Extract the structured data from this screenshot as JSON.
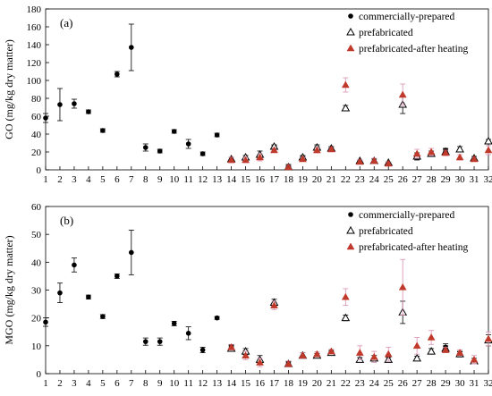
{
  "chart_data": [
    {
      "type": "scatter",
      "panel_label": "(a)",
      "ylabel": "GO (mg/kg dry matter)",
      "xlabel": "",
      "xlim": [
        1,
        32
      ],
      "ylim": [
        0,
        180
      ],
      "ytick_step": 20,
      "grid": false,
      "legend_position": "top-right",
      "x": [
        1,
        2,
        3,
        4,
        5,
        6,
        7,
        8,
        9,
        10,
        11,
        12,
        13,
        14,
        15,
        16,
        17,
        18,
        19,
        20,
        21,
        22,
        23,
        24,
        25,
        26,
        27,
        28,
        29,
        30,
        31,
        32
      ],
      "series": [
        {
          "name": "commercially-prepared",
          "marker": "dot",
          "color": "#000000",
          "points": [
            {
              "x": 1,
              "y": 58,
              "err": 5
            },
            {
              "x": 2,
              "y": 73,
              "err": 18
            },
            {
              "x": 3,
              "y": 74,
              "err": 5
            },
            {
              "x": 4,
              "y": 65,
              "err": 2
            },
            {
              "x": 5,
              "y": 44,
              "err": 2
            },
            {
              "x": 6,
              "y": 107,
              "err": 3
            },
            {
              "x": 7,
              "y": 137,
              "err": 26
            },
            {
              "x": 8,
              "y": 25,
              "err": 4
            },
            {
              "x": 9,
              "y": 21,
              "err": 2
            },
            {
              "x": 10,
              "y": 43,
              "err": 2
            },
            {
              "x": 11,
              "y": 29,
              "err": 5
            },
            {
              "x": 12,
              "y": 18,
              "err": 2
            },
            {
              "x": 13,
              "y": 39,
              "err": 2
            },
            {
              "x": 17,
              "y": 25,
              "err": 2
            },
            {
              "x": 18,
              "y": 4,
              "err": 2
            },
            {
              "x": 19,
              "y": 13,
              "err": 2
            },
            {
              "x": 20,
              "y": 23,
              "err": 3
            },
            {
              "x": 21,
              "y": 23,
              "err": 2
            },
            {
              "x": 29,
              "y": 22,
              "err": 2
            }
          ]
        },
        {
          "name": "prefabricated",
          "marker": "open-triangle",
          "color": "#000000",
          "points": [
            {
              "x": 14,
              "y": 12,
              "err": 2
            },
            {
              "x": 15,
              "y": 14,
              "err": 2
            },
            {
              "x": 16,
              "y": 17,
              "err": 4
            },
            {
              "x": 17,
              "y": 26,
              "err": 2
            },
            {
              "x": 18,
              "y": 3,
              "err": 1
            },
            {
              "x": 19,
              "y": 14,
              "err": 2
            },
            {
              "x": 20,
              "y": 25,
              "err": 3
            },
            {
              "x": 21,
              "y": 24,
              "err": 2
            },
            {
              "x": 22,
              "y": 69,
              "err": 3
            },
            {
              "x": 23,
              "y": 10,
              "err": 1
            },
            {
              "x": 24,
              "y": 10,
              "err": 2
            },
            {
              "x": 25,
              "y": 8,
              "err": 1
            },
            {
              "x": 26,
              "y": 73,
              "err": 10
            },
            {
              "x": 27,
              "y": 15,
              "err": 4
            },
            {
              "x": 28,
              "y": 18,
              "err": 3
            },
            {
              "x": 29,
              "y": 20,
              "err": 3
            },
            {
              "x": 30,
              "y": 23,
              "err": 3
            },
            {
              "x": 31,
              "y": 13,
              "err": 2
            },
            {
              "x": 32,
              "y": 32,
              "err": 2
            }
          ]
        },
        {
          "name": "prefabricated-after heating",
          "marker": "filled-triangle",
          "color": "#c0392b",
          "errcolor": "#d98fb0",
          "points": [
            {
              "x": 14,
              "y": 11,
              "err": 3
            },
            {
              "x": 15,
              "y": 11,
              "err": 3
            },
            {
              "x": 16,
              "y": 14,
              "err": 4
            },
            {
              "x": 17,
              "y": 22,
              "err": 2
            },
            {
              "x": 18,
              "y": 3,
              "err": 2
            },
            {
              "x": 19,
              "y": 12,
              "err": 2
            },
            {
              "x": 20,
              "y": 22,
              "err": 3
            },
            {
              "x": 21,
              "y": 23,
              "err": 2
            },
            {
              "x": 22,
              "y": 95,
              "err": 8
            },
            {
              "x": 23,
              "y": 9,
              "err": 2
            },
            {
              "x": 24,
              "y": 10,
              "err": 3
            },
            {
              "x": 25,
              "y": 7,
              "err": 2
            },
            {
              "x": 26,
              "y": 84,
              "err": 12
            },
            {
              "x": 27,
              "y": 18,
              "err": 5
            },
            {
              "x": 28,
              "y": 20,
              "err": 4
            },
            {
              "x": 29,
              "y": 19,
              "err": 3
            },
            {
              "x": 30,
              "y": 14,
              "err": 3
            },
            {
              "x": 31,
              "y": 12,
              "err": 2
            },
            {
              "x": 32,
              "y": 22,
              "err": 5
            }
          ]
        }
      ]
    },
    {
      "type": "scatter",
      "panel_label": "(b)",
      "ylabel": "MGO (mg/kg dry matter)",
      "xlabel": "",
      "xlim": [
        1,
        32
      ],
      "ylim": [
        0,
        60
      ],
      "ytick_step": 10,
      "grid": false,
      "legend_position": "top-right",
      "x": [
        1,
        2,
        3,
        4,
        5,
        6,
        7,
        8,
        9,
        10,
        11,
        12,
        13,
        14,
        15,
        16,
        17,
        18,
        19,
        20,
        21,
        22,
        23,
        24,
        25,
        26,
        27,
        28,
        29,
        30,
        31,
        32
      ],
      "series": [
        {
          "name": "commercially-prepared",
          "marker": "dot",
          "color": "#000000",
          "points": [
            {
              "x": 1,
              "y": 18.5,
              "err": 1.5
            },
            {
              "x": 2,
              "y": 29,
              "err": 3.5
            },
            {
              "x": 3,
              "y": 39,
              "err": 2.5
            },
            {
              "x": 4,
              "y": 27.5,
              "err": 0.7
            },
            {
              "x": 5,
              "y": 20.5,
              "err": 0.7
            },
            {
              "x": 6,
              "y": 35,
              "err": 0.8
            },
            {
              "x": 7,
              "y": 43.5,
              "err": 8
            },
            {
              "x": 8,
              "y": 11.5,
              "err": 1.3
            },
            {
              "x": 9,
              "y": 11.5,
              "err": 1.3
            },
            {
              "x": 10,
              "y": 18,
              "err": 0.8
            },
            {
              "x": 11,
              "y": 14.5,
              "err": 2.3
            },
            {
              "x": 12,
              "y": 8.5,
              "err": 1
            },
            {
              "x": 13,
              "y": 20,
              "err": 0.5
            },
            {
              "x": 14,
              "y": 9.5,
              "err": 0.8
            },
            {
              "x": 15,
              "y": 7.5,
              "err": 0.7
            },
            {
              "x": 18,
              "y": 3.5,
              "err": 0.7
            },
            {
              "x": 21,
              "y": 8,
              "err": 0.6
            },
            {
              "x": 29,
              "y": 9.5,
              "err": 1.2
            },
            {
              "x": 30,
              "y": 7,
              "err": 0.8
            }
          ]
        },
        {
          "name": "prefabricated",
          "marker": "open-triangle",
          "color": "#000000",
          "points": [
            {
              "x": 14,
              "y": 9,
              "err": 1
            },
            {
              "x": 15,
              "y": 8,
              "err": 1
            },
            {
              "x": 16,
              "y": 5,
              "err": 1.5
            },
            {
              "x": 17,
              "y": 25.5,
              "err": 1.2
            },
            {
              "x": 18,
              "y": 3.5,
              "err": 1
            },
            {
              "x": 19,
              "y": 6.5,
              "err": 1
            },
            {
              "x": 20,
              "y": 6.5,
              "err": 0.8
            },
            {
              "x": 21,
              "y": 7.5,
              "err": 0.5
            },
            {
              "x": 22,
              "y": 20,
              "err": 1
            },
            {
              "x": 23,
              "y": 5,
              "err": 0.8
            },
            {
              "x": 24,
              "y": 5.5,
              "err": 1
            },
            {
              "x": 25,
              "y": 5,
              "err": 0.8
            },
            {
              "x": 26,
              "y": 22,
              "err": 4
            },
            {
              "x": 27,
              "y": 5.5,
              "err": 0.8
            },
            {
              "x": 28,
              "y": 8,
              "err": 1
            },
            {
              "x": 29,
              "y": 9,
              "err": 1
            },
            {
              "x": 30,
              "y": 7,
              "err": 1
            },
            {
              "x": 31,
              "y": 4.5,
              "err": 1
            },
            {
              "x": 32,
              "y": 12,
              "err": 2
            }
          ]
        },
        {
          "name": "prefabricated-after heating",
          "marker": "filled-triangle",
          "color": "#c0392b",
          "errcolor": "#d98fb0",
          "points": [
            {
              "x": 14,
              "y": 9.5,
              "err": 1
            },
            {
              "x": 15,
              "y": 6.5,
              "err": 1.5
            },
            {
              "x": 16,
              "y": 4,
              "err": 1.5
            },
            {
              "x": 17,
              "y": 24.5,
              "err": 1.5
            },
            {
              "x": 18,
              "y": 3.5,
              "err": 1
            },
            {
              "x": 19,
              "y": 6.5,
              "err": 1
            },
            {
              "x": 20,
              "y": 7,
              "err": 0.8
            },
            {
              "x": 21,
              "y": 8,
              "err": 0.6
            },
            {
              "x": 22,
              "y": 27.5,
              "err": 3
            },
            {
              "x": 23,
              "y": 7.5,
              "err": 2.5
            },
            {
              "x": 24,
              "y": 6,
              "err": 2
            },
            {
              "x": 25,
              "y": 7,
              "err": 2.5
            },
            {
              "x": 26,
              "y": 31,
              "err": 10
            },
            {
              "x": 27,
              "y": 10,
              "err": 3
            },
            {
              "x": 28,
              "y": 13,
              "err": 2.5
            },
            {
              "x": 29,
              "y": 8.5,
              "err": 1
            },
            {
              "x": 30,
              "y": 7.5,
              "err": 1
            },
            {
              "x": 31,
              "y": 5,
              "err": 1.5
            },
            {
              "x": 32,
              "y": 12.5,
              "err": 2.5
            }
          ]
        }
      ]
    }
  ]
}
